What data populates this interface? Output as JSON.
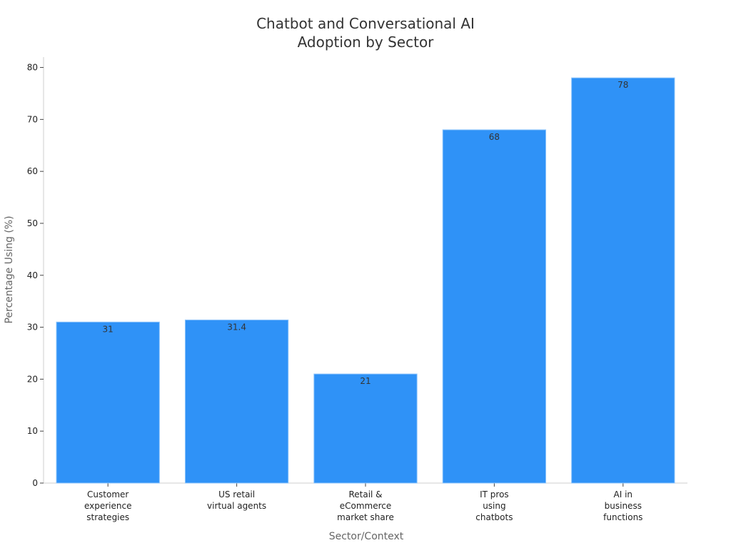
{
  "chart_data": {
    "type": "bar",
    "title": [
      "Chatbot and Conversational AI",
      "Adoption by Sector"
    ],
    "xlabel": "Sector/Context",
    "ylabel": "Percentage Using (%)",
    "categories": [
      [
        "Customer",
        "experience",
        "strategies"
      ],
      [
        "US retail",
        "virtual agents"
      ],
      [
        "Retail &",
        "eCommerce",
        "market share"
      ],
      [
        "IT pros",
        "using",
        "chatbots"
      ],
      [
        "AI in",
        "business",
        "functions"
      ]
    ],
    "values": [
      31,
      31.4,
      21,
      68,
      78
    ],
    "data_labels": [
      "31",
      "31.4",
      "21",
      "68",
      "78"
    ],
    "yticks": [
      0,
      10,
      20,
      30,
      40,
      50,
      60,
      70,
      80
    ],
    "ylim": [
      0,
      82
    ],
    "bar_color": "#2f92f7",
    "bar_edge_color": "#8cc4fb",
    "grid": false,
    "legend": "none"
  }
}
